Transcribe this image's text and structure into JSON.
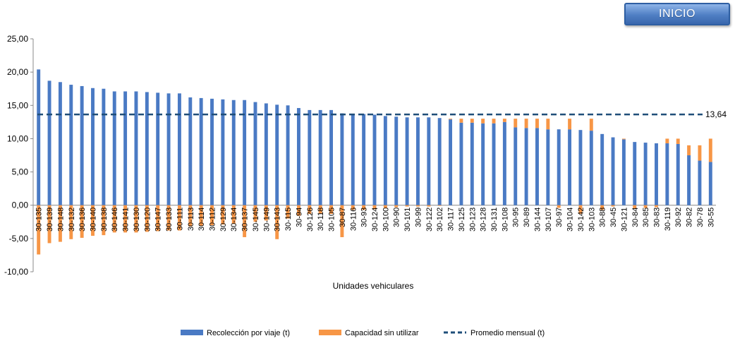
{
  "button": {
    "label": "INICIO"
  },
  "colors": {
    "recoleccion": "#4a7ac4",
    "capacidad": "#f79646",
    "promedio": "#1f4e79"
  },
  "chart_data": {
    "type": "bar",
    "xlabel": "Unidades vehiculares",
    "ylabel": "",
    "ylim": [
      -10,
      25
    ],
    "yticks": [
      "-10,00",
      "-5,00",
      "0,00",
      "5,00",
      "10,00",
      "15,00",
      "20,00",
      "25,00"
    ],
    "categories": [
      "30-135",
      "30-139",
      "30-148",
      "30-132",
      "30-136",
      "30-140",
      "30-138",
      "30-146",
      "30-141",
      "30-130",
      "30-120",
      "30-147",
      "30-133",
      "30-111",
      "30-113",
      "30-114",
      "30-112",
      "30-129",
      "30-134",
      "30-137",
      "30-145",
      "30-149",
      "30-143",
      "30-115",
      "30-94",
      "30-126",
      "30-118",
      "30-105",
      "30-87",
      "30-116",
      "30-93",
      "30-124",
      "30-100",
      "30-90",
      "30-101",
      "30-99",
      "30-122",
      "30-102",
      "30-117",
      "30-125",
      "30-123",
      "30-128",
      "30-131",
      "30-108",
      "30-95",
      "30-89",
      "30-144",
      "30-107",
      "30-97",
      "30-104",
      "30-142",
      "30-103",
      "30-88",
      "30-45",
      "30-121",
      "30-84",
      "30-85",
      "30-83",
      "30-119",
      "30-92",
      "30-82",
      "30-78",
      "30-55"
    ],
    "series": [
      {
        "name": "Recolección por viaje (t)",
        "values": [
          20.4,
          18.7,
          18.5,
          18.1,
          17.9,
          17.6,
          17.5,
          17.1,
          17.1,
          17.1,
          17.0,
          16.9,
          16.8,
          16.8,
          16.2,
          16.1,
          16.0,
          15.9,
          15.8,
          15.8,
          15.5,
          15.3,
          15.1,
          15.0,
          14.6,
          14.3,
          14.3,
          14.3,
          13.8,
          13.7,
          13.7,
          13.6,
          13.4,
          13.3,
          13.2,
          13.2,
          13.2,
          13.1,
          12.9,
          12.4,
          12.4,
          12.3,
          12.3,
          12.5,
          11.7,
          11.6,
          11.6,
          11.4,
          11.4,
          11.4,
          11.3,
          11.2,
          10.7,
          10.2,
          9.9,
          9.5,
          9.4,
          9.3,
          9.3,
          9.2,
          7.5,
          6.7,
          6.5
        ]
      },
      {
        "name": "Capacidad sin utilizar",
        "values": [
          -7.4,
          -5.7,
          -5.5,
          -5.1,
          -4.9,
          -4.6,
          -4.5,
          -4.1,
          -4.1,
          -4.1,
          -4.0,
          -3.9,
          -3.8,
          -3.8,
          -3.2,
          -3.1,
          -3.0,
          -2.9,
          -2.8,
          -4.8,
          -2.5,
          -2.3,
          -5.1,
          -2.0,
          -1.6,
          -1.3,
          -1.3,
          -1.3,
          -4.8,
          -0.7,
          -0.7,
          -0.6,
          -0.4,
          -0.3,
          -0.2,
          -0.2,
          -0.2,
          -0.1,
          0.1,
          0.6,
          0.6,
          0.7,
          0.7,
          0.5,
          1.3,
          1.4,
          1.4,
          1.6,
          -0.4,
          1.6,
          -1.3,
          1.8,
          -0.7,
          -0.2,
          0.1,
          -0.5,
          -0.4,
          -0.3,
          0.7,
          0.8,
          1.5,
          2.3,
          3.5
        ]
      }
    ],
    "promedio": {
      "name": "Promedio mensual (t)",
      "value": 13.64,
      "label": "13,64"
    },
    "legend": "bottom"
  }
}
